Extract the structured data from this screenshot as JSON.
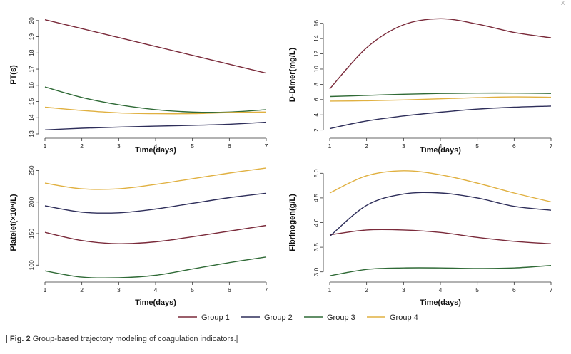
{
  "close_symbol": "x",
  "caption": {
    "prefix": "| ",
    "fig_number": "Fig. 2",
    "text": " Group-based trajectory modeling of coagulation indicators.|"
  },
  "legend": [
    {
      "name": "Group 1",
      "color": "#7a2a3a"
    },
    {
      "name": "Group 2",
      "color": "#2e2e5a"
    },
    {
      "name": "Group 3",
      "color": "#2f6a36"
    },
    {
      "name": "Group 4",
      "color": "#e0b040"
    }
  ],
  "chart_data": [
    {
      "type": "line",
      "title": "",
      "xlabel": "Time(days)",
      "ylabel": "PT(s)",
      "x": [
        1,
        2,
        3,
        4,
        5,
        6,
        7
      ],
      "xticks": [
        1,
        2,
        3,
        4,
        5,
        6,
        7
      ],
      "ylim": [
        13,
        20.3
      ],
      "yticks": [
        13,
        14,
        15,
        16,
        17,
        18,
        19,
        20
      ],
      "series": [
        {
          "name": "Group 1",
          "values": [
            20.05,
            19.5,
            18.95,
            18.4,
            17.85,
            17.3,
            16.75
          ]
        },
        {
          "name": "Group 2",
          "values": [
            13.25,
            13.35,
            13.42,
            13.48,
            13.53,
            13.6,
            13.72
          ]
        },
        {
          "name": "Group 3",
          "values": [
            15.9,
            15.25,
            14.8,
            14.5,
            14.35,
            14.35,
            14.5
          ]
        },
        {
          "name": "Group 4",
          "values": [
            14.65,
            14.45,
            14.3,
            14.25,
            14.25,
            14.32,
            14.35
          ]
        }
      ]
    },
    {
      "type": "line",
      "title": "",
      "xlabel": "Time(days)",
      "ylabel": "D-Dimer(mg/L)",
      "x": [
        1,
        2,
        3,
        4,
        5,
        6,
        7
      ],
      "xticks": [
        1,
        2,
        3,
        4,
        5,
        6,
        7
      ],
      "ylim": [
        1.5,
        17
      ],
      "yticks": [
        2,
        4,
        6,
        8,
        10,
        12,
        14,
        16
      ],
      "series": [
        {
          "name": "Group 1",
          "values": [
            7.4,
            12.8,
            15.8,
            16.6,
            15.9,
            14.8,
            14.1
          ]
        },
        {
          "name": "Group 2",
          "values": [
            2.2,
            3.2,
            3.85,
            4.35,
            4.75,
            5.0,
            5.15
          ]
        },
        {
          "name": "Group 3",
          "values": [
            6.4,
            6.55,
            6.7,
            6.8,
            6.85,
            6.85,
            6.8
          ]
        },
        {
          "name": "Group 4",
          "values": [
            5.8,
            5.85,
            5.95,
            6.1,
            6.25,
            6.35,
            6.3
          ]
        }
      ]
    },
    {
      "type": "line",
      "title": "",
      "xlabel": "Time(days)",
      "ylabel": "Platelet(×10⁹/L)",
      "x": [
        1,
        2,
        3,
        4,
        5,
        6,
        7
      ],
      "xticks": [
        1,
        2,
        3,
        4,
        5,
        6,
        7
      ],
      "ylim": [
        80,
        255
      ],
      "yticks": [
        100,
        150,
        200,
        250
      ],
      "series": [
        {
          "name": "Group 1",
          "values": [
            152,
            139,
            134,
            137,
            145,
            154,
            163
          ]
        },
        {
          "name": "Group 2",
          "values": [
            194,
            184,
            183,
            189,
            198,
            207,
            214
          ]
        },
        {
          "name": "Group 3",
          "values": [
            91,
            81,
            80,
            84,
            94,
            104,
            113
          ]
        },
        {
          "name": "Group 4",
          "values": [
            230,
            221,
            221,
            228,
            237,
            246,
            254
          ]
        }
      ]
    },
    {
      "type": "line",
      "title": "",
      "xlabel": "Time(days)",
      "ylabel": "Fibrinogen(g/L)",
      "x": [
        1,
        2,
        3,
        4,
        5,
        6,
        7
      ],
      "xticks": [
        1,
        2,
        3,
        4,
        5,
        6,
        7
      ],
      "ylim": [
        2.88,
        5.12
      ],
      "yticks": [
        3.0,
        3.5,
        4.0,
        4.5,
        5.0
      ],
      "ytick_labels": [
        "3.0",
        "3.5",
        "4.0",
        "4.5",
        "5.0"
      ],
      "series": [
        {
          "name": "Group 1",
          "values": [
            3.75,
            3.85,
            3.85,
            3.8,
            3.7,
            3.62,
            3.57
          ]
        },
        {
          "name": "Group 2",
          "values": [
            3.72,
            4.35,
            4.58,
            4.6,
            4.5,
            4.33,
            4.25
          ]
        },
        {
          "name": "Group 3",
          "values": [
            2.92,
            3.05,
            3.08,
            3.08,
            3.07,
            3.08,
            3.13
          ]
        },
        {
          "name": "Group 4",
          "values": [
            4.6,
            4.95,
            5.05,
            4.97,
            4.8,
            4.6,
            4.42
          ]
        }
      ]
    }
  ]
}
